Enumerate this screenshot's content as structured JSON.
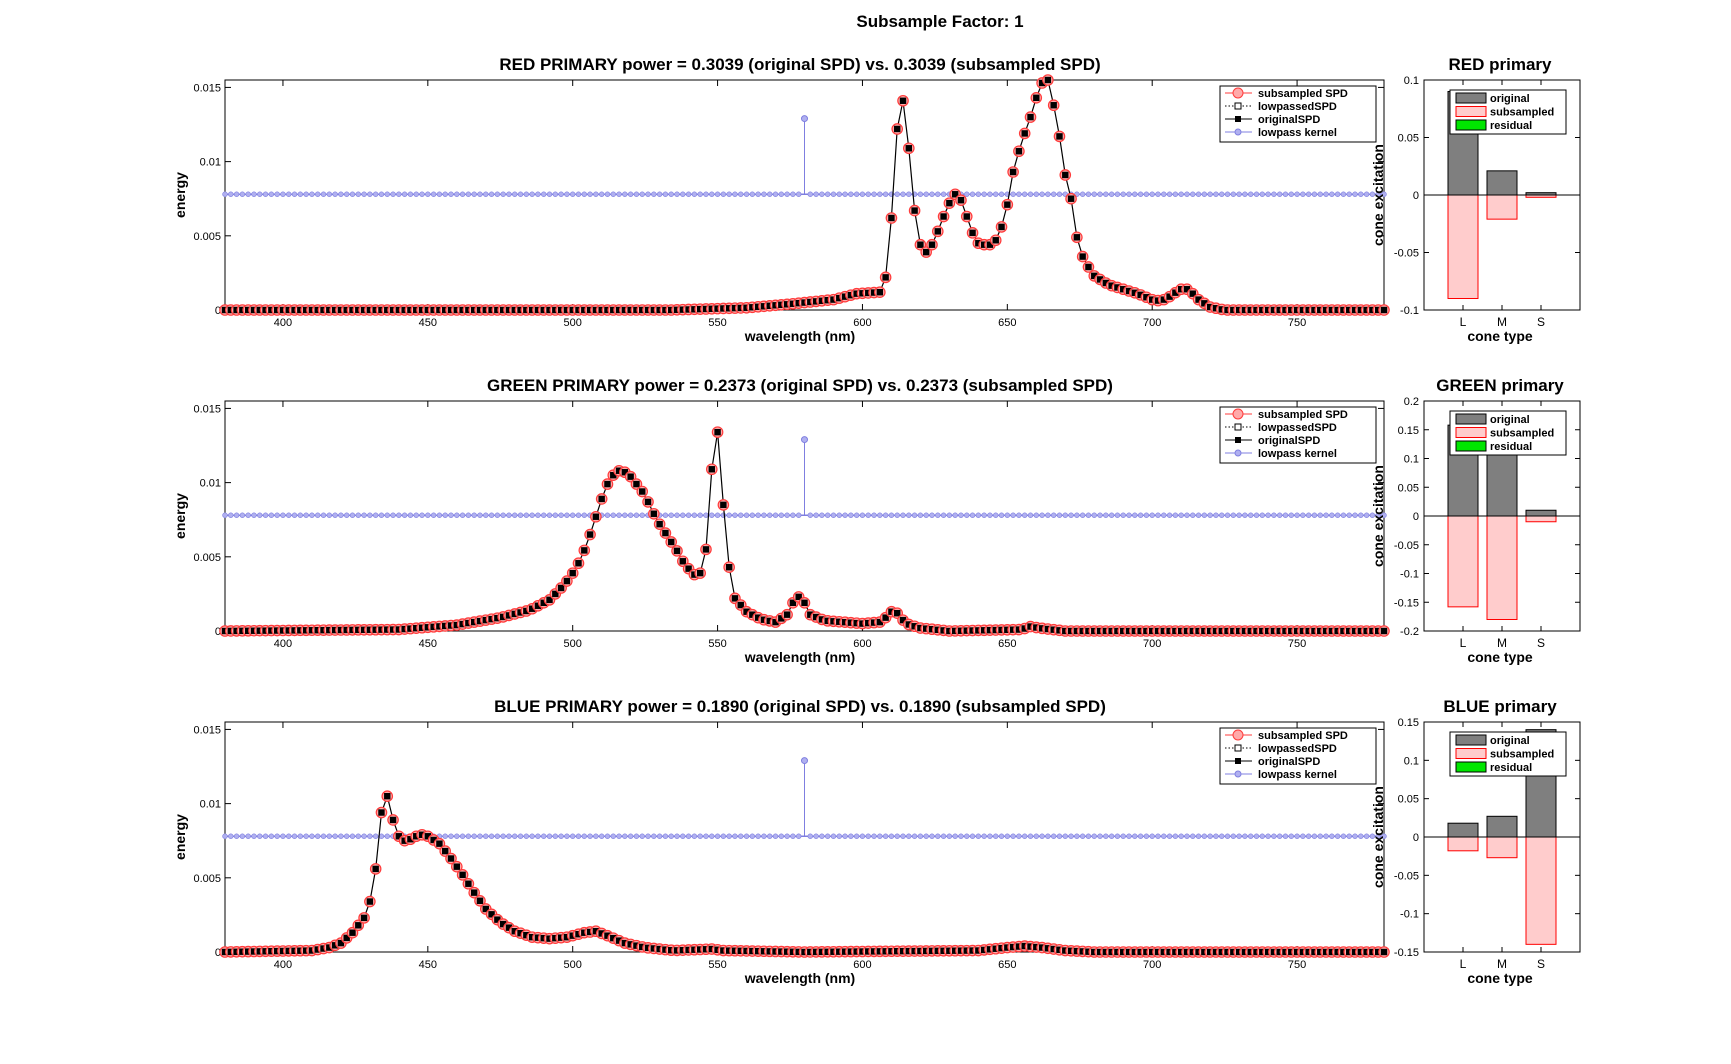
{
  "figure": {
    "title": "Subsample Factor: 1"
  },
  "chart_data": [
    {
      "type": "line",
      "title": "RED PRIMARY power = 0.3039 (original SPD) vs. 0.3039 (subsampled SPD)",
      "xlabel": "wavelength (nm)",
      "ylabel": "energy",
      "xlim": [
        380,
        780
      ],
      "ylim": [
        0,
        0.0155
      ],
      "xticks": [
        400,
        450,
        500,
        550,
        600,
        650,
        700,
        750
      ],
      "xtick_labels": [
        "400",
        "450",
        "500",
        "550",
        "600",
        "650",
        "700",
        "750"
      ],
      "yticks": [
        0,
        0.005,
        0.01,
        0.015
      ],
      "ytick_labels": [
        "0",
        "0.005",
        "0.01",
        "0.015"
      ],
      "legend": [
        "subsampled SPD",
        "lowpassedSPD",
        "originalSPD",
        "lowpass kernel"
      ],
      "legend_position": "top-right",
      "kernel": {
        "baseline": 0.0078,
        "spike_x": 580,
        "spike_y": 0.0129
      },
      "spd_keypoints": [
        [
          380,
          0
        ],
        [
          534,
          0
        ],
        [
          560,
          0.00015
        ],
        [
          575,
          0.0004
        ],
        [
          590,
          0.0007
        ],
        [
          598,
          0.0011
        ],
        [
          606,
          0.0012
        ],
        [
          608,
          0.0022
        ],
        [
          610,
          0.0062
        ],
        [
          612,
          0.0122
        ],
        [
          614,
          0.0141
        ],
        [
          616,
          0.0109
        ],
        [
          618,
          0.0067
        ],
        [
          620,
          0.0044
        ],
        [
          622,
          0.0039
        ],
        [
          624,
          0.0044
        ],
        [
          626,
          0.0053
        ],
        [
          628,
          0.0063
        ],
        [
          630,
          0.0072
        ],
        [
          632,
          0.0078
        ],
        [
          634,
          0.0074
        ],
        [
          636,
          0.0063
        ],
        [
          638,
          0.0052
        ],
        [
          640,
          0.0045
        ],
        [
          642,
          0.0044
        ],
        [
          644,
          0.0044
        ],
        [
          646,
          0.0047
        ],
        [
          648,
          0.0056
        ],
        [
          650,
          0.0071
        ],
        [
          652,
          0.0093
        ],
        [
          654,
          0.0107
        ],
        [
          656,
          0.0119
        ],
        [
          658,
          0.013
        ],
        [
          660,
          0.0143
        ],
        [
          662,
          0.0153
        ],
        [
          664,
          0.0155
        ],
        [
          666,
          0.0138
        ],
        [
          668,
          0.0117
        ],
        [
          670,
          0.0091
        ],
        [
          672,
          0.0075
        ],
        [
          674,
          0.0049
        ],
        [
          676,
          0.0036
        ],
        [
          678,
          0.0029
        ],
        [
          680,
          0.0023
        ],
        [
          685,
          0.0017
        ],
        [
          690,
          0.0014
        ],
        [
          695,
          0.0011
        ],
        [
          700,
          0.0007
        ],
        [
          703,
          0.0006
        ],
        [
          706,
          0.0009
        ],
        [
          709,
          0.0013
        ],
        [
          711,
          0.0015
        ],
        [
          713,
          0.0013
        ],
        [
          716,
          0.0007
        ],
        [
          720,
          0.0002
        ],
        [
          725,
          0
        ],
        [
          780,
          0
        ]
      ]
    },
    {
      "type": "bar",
      "title": "RED primary",
      "xlabel": "cone type",
      "ylabel": "cone excitation",
      "categories": [
        "L",
        "M",
        "S"
      ],
      "ylim": [
        -0.1,
        0.1
      ],
      "yticks": [
        -0.1,
        -0.05,
        0,
        0.05,
        0.1
      ],
      "ytick_labels": [
        "-0.1",
        "-0.05",
        "0",
        "0.05",
        "0.1"
      ],
      "series": [
        {
          "name": "original",
          "values": [
            0.09,
            0.021,
            0.002
          ]
        },
        {
          "name": "subsampled",
          "values": [
            -0.09,
            -0.021,
            -0.002
          ]
        },
        {
          "name": "residual",
          "values": [
            0,
            0,
            0
          ]
        }
      ],
      "legend_position": "top-right"
    },
    {
      "type": "line",
      "title": "GREEN PRIMARY power = 0.2373 (original SPD) vs. 0.2373 (subsampled SPD)",
      "xlabel": "wavelength (nm)",
      "ylabel": "energy",
      "xlim": [
        380,
        780
      ],
      "ylim": [
        0,
        0.0155
      ],
      "xticks": [
        400,
        450,
        500,
        550,
        600,
        650,
        700,
        750
      ],
      "xtick_labels": [
        "400",
        "450",
        "500",
        "550",
        "600",
        "650",
        "700",
        "750"
      ],
      "yticks": [
        0,
        0.005,
        0.01,
        0.015
      ],
      "ytick_labels": [
        "0",
        "0.005",
        "0.01",
        "0.015"
      ],
      "legend": [
        "subsampled SPD",
        "lowpassedSPD",
        "originalSPD",
        "lowpass kernel"
      ],
      "legend_position": "top-right",
      "kernel": {
        "baseline": 0.0078,
        "spike_x": 580,
        "spike_y": 0.0129
      },
      "spd_keypoints": [
        [
          380,
          0
        ],
        [
          440,
          0.0001
        ],
        [
          460,
          0.0004
        ],
        [
          475,
          0.0009
        ],
        [
          485,
          0.0014
        ],
        [
          492,
          0.0021
        ],
        [
          497,
          0.0031
        ],
        [
          500,
          0.0039
        ],
        [
          503,
          0.0049
        ],
        [
          506,
          0.0065
        ],
        [
          508,
          0.0077
        ],
        [
          510,
          0.0089
        ],
        [
          512,
          0.0099
        ],
        [
          514,
          0.0105
        ],
        [
          516,
          0.0108
        ],
        [
          518,
          0.0107
        ],
        [
          520,
          0.0104
        ],
        [
          522,
          0.0099
        ],
        [
          524,
          0.0094
        ],
        [
          526,
          0.0087
        ],
        [
          528,
          0.0079
        ],
        [
          530,
          0.0072
        ],
        [
          532,
          0.0066
        ],
        [
          534,
          0.006
        ],
        [
          536,
          0.0054
        ],
        [
          538,
          0.0047
        ],
        [
          540,
          0.0042
        ],
        [
          542,
          0.0038
        ],
        [
          544,
          0.0039
        ],
        [
          546,
          0.0055
        ],
        [
          548,
          0.0109
        ],
        [
          550,
          0.0134
        ],
        [
          552,
          0.0085
        ],
        [
          554,
          0.0043
        ],
        [
          556,
          0.0022
        ],
        [
          560,
          0.0013
        ],
        [
          565,
          0.0008
        ],
        [
          570,
          0.0006
        ],
        [
          574,
          0.0011
        ],
        [
          576,
          0.0019
        ],
        [
          578,
          0.0023
        ],
        [
          580,
          0.0019
        ],
        [
          582,
          0.0011
        ],
        [
          587,
          0.0007
        ],
        [
          600,
          0.0005
        ],
        [
          606,
          0.0006
        ],
        [
          608,
          0.0009
        ],
        [
          610,
          0.0013
        ],
        [
          612,
          0.0012
        ],
        [
          615,
          0.0005
        ],
        [
          620,
          0.0002
        ],
        [
          630,
          0
        ],
        [
          655,
          0.0001
        ],
        [
          658,
          0.0003
        ],
        [
          661,
          0.0002
        ],
        [
          670,
          0
        ],
        [
          780,
          0
        ]
      ]
    },
    {
      "type": "bar",
      "title": "GREEN primary",
      "xlabel": "cone type",
      "ylabel": "cone excitation",
      "categories": [
        "L",
        "M",
        "S"
      ],
      "ylim": [
        -0.2,
        0.2
      ],
      "yticks": [
        -0.2,
        -0.15,
        -0.1,
        -0.05,
        0,
        0.05,
        0.1,
        0.15,
        0.2
      ],
      "ytick_labels": [
        "-0.2",
        "-0.15",
        "-0.1",
        "-0.05",
        "0",
        "0.05",
        "0.1",
        "0.15",
        "0.2"
      ],
      "series": [
        {
          "name": "original",
          "values": [
            0.158,
            0.18,
            0.01
          ]
        },
        {
          "name": "subsampled",
          "values": [
            -0.158,
            -0.18,
            -0.01
          ]
        },
        {
          "name": "residual",
          "values": [
            0,
            0,
            0
          ]
        }
      ],
      "legend_position": "top-right"
    },
    {
      "type": "line",
      "title": "BLUE PRIMARY power = 0.1890 (original SPD) vs. 0.1890 (subsampled SPD)",
      "xlabel": "wavelength (nm)",
      "ylabel": "energy",
      "xlim": [
        380,
        780
      ],
      "ylim": [
        0,
        0.0155
      ],
      "xticks": [
        400,
        450,
        500,
        550,
        600,
        650,
        700,
        750
      ],
      "xtick_labels": [
        "400",
        "450",
        "500",
        "550",
        "600",
        "650",
        "700",
        "750"
      ],
      "yticks": [
        0,
        0.005,
        0.01,
        0.015
      ],
      "ytick_labels": [
        "0",
        "0.005",
        "0.01",
        "0.015"
      ],
      "legend": [
        "subsampled SPD",
        "lowpassedSPD",
        "originalSPD",
        "lowpass kernel"
      ],
      "legend_position": "top-right",
      "kernel": {
        "baseline": 0.0078,
        "spike_x": 580,
        "spike_y": 0.0129
      },
      "spd_keypoints": [
        [
          380,
          0
        ],
        [
          410,
          0.0001
        ],
        [
          416,
          0.0003
        ],
        [
          420,
          0.0006
        ],
        [
          424,
          0.0013
        ],
        [
          428,
          0.0023
        ],
        [
          430,
          0.0034
        ],
        [
          432,
          0.0056
        ],
        [
          434,
          0.0094
        ],
        [
          436,
          0.0105
        ],
        [
          438,
          0.0089
        ],
        [
          440,
          0.0078
        ],
        [
          442,
          0.0075
        ],
        [
          444,
          0.0076
        ],
        [
          446,
          0.0078
        ],
        [
          448,
          0.0079
        ],
        [
          450,
          0.0078
        ],
        [
          454,
          0.0073
        ],
        [
          458,
          0.0063
        ],
        [
          462,
          0.0052
        ],
        [
          466,
          0.004
        ],
        [
          470,
          0.0029
        ],
        [
          475,
          0.002
        ],
        [
          480,
          0.0014
        ],
        [
          486,
          0.001
        ],
        [
          492,
          0.0009
        ],
        [
          498,
          0.001
        ],
        [
          504,
          0.0013
        ],
        [
          508,
          0.0014
        ],
        [
          512,
          0.0011
        ],
        [
          518,
          0.0006
        ],
        [
          525,
          0.0003
        ],
        [
          535,
          0.0001
        ],
        [
          548,
          0.0002
        ],
        [
          552,
          0.0001
        ],
        [
          580,
          0
        ],
        [
          640,
          0.0001
        ],
        [
          650,
          0.0003
        ],
        [
          656,
          0.0004
        ],
        [
          662,
          0.0003
        ],
        [
          670,
          0.0001
        ],
        [
          680,
          0
        ],
        [
          780,
          0
        ]
      ]
    },
    {
      "type": "bar",
      "title": "BLUE primary",
      "xlabel": "cone type",
      "ylabel": "cone excitation",
      "categories": [
        "L",
        "M",
        "S"
      ],
      "ylim": [
        -0.15,
        0.15
      ],
      "yticks": [
        -0.15,
        -0.1,
        -0.05,
        0,
        0.05,
        0.1,
        0.15
      ],
      "ytick_labels": [
        "-0.15",
        "-0.1",
        "-0.05",
        "0",
        "0.05",
        "0.1",
        "0.15"
      ],
      "series": [
        {
          "name": "original",
          "values": [
            0.018,
            0.027,
            0.14
          ]
        },
        {
          "name": "subsampled",
          "values": [
            -0.018,
            -0.027,
            -0.14
          ]
        },
        {
          "name": "residual",
          "values": [
            0,
            0,
            0
          ]
        }
      ],
      "legend_position": "top-right"
    }
  ],
  "colors": {
    "subsampled_edge": "#ff3b3b",
    "subsampled_fill": "#ffaaaa",
    "original_marker": "#000000",
    "kernel": "#7f7fe0",
    "kernel_marker": "#b0b0f0",
    "bar_original": "#7f7f7f",
    "bar_subsampled_fill": "#ffcccc",
    "bar_subsampled_edge": "#ff0000",
    "bar_residual": "#00e600"
  }
}
